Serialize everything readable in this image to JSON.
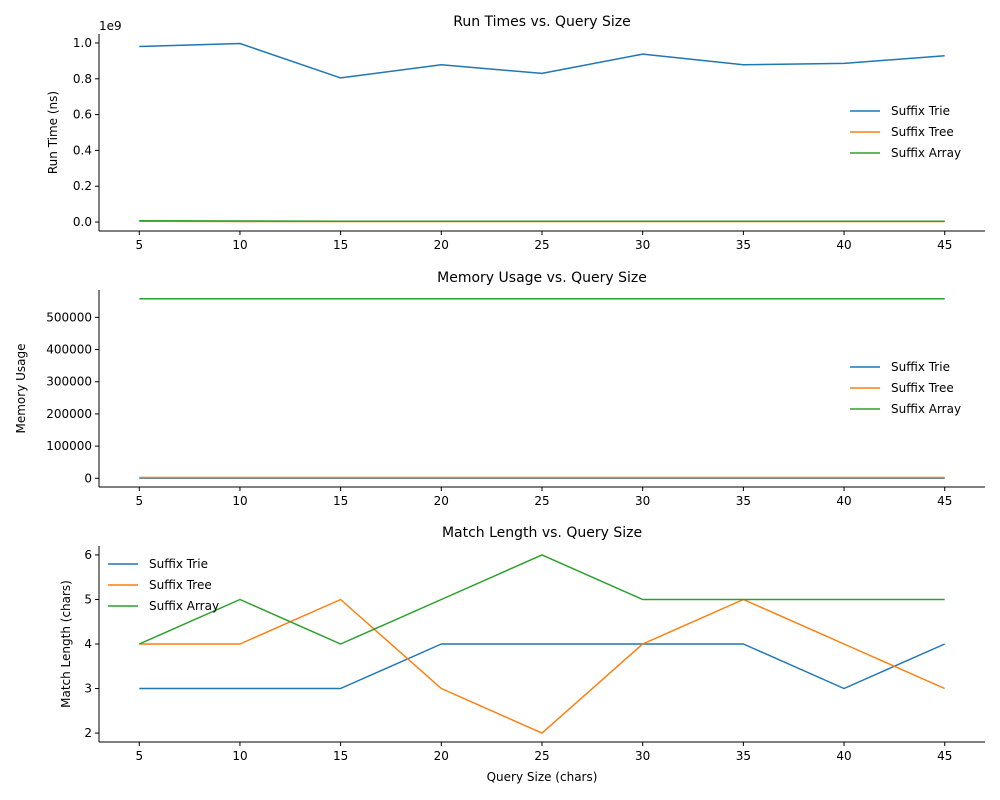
{
  "chart_data": [
    {
      "type": "line",
      "title": "Run Times vs. Query Size",
      "xlabel": "",
      "ylabel": "Run Time (ns)",
      "offset_label": "1e9",
      "x": [
        5,
        10,
        15,
        20,
        25,
        30,
        35,
        40,
        45
      ],
      "xticks": [
        "5",
        "10",
        "15",
        "20",
        "25",
        "30",
        "35",
        "40",
        "45"
      ],
      "xlim": [
        3,
        47
      ],
      "ylim": [
        -0.05,
        1.05
      ],
      "yticks": [
        0.0,
        0.2,
        0.4,
        0.6,
        0.8,
        1.0
      ],
      "ytick_labels": [
        "0.0",
        "0.2",
        "0.4",
        "0.6",
        "0.8",
        "1.0"
      ],
      "legend_position": "right",
      "grid": false,
      "series": [
        {
          "name": "Suffix Trie",
          "color": "#1f77b4",
          "values": [
            0.98,
            0.997,
            0.805,
            0.878,
            0.83,
            0.938,
            0.878,
            0.886,
            0.928
          ]
        },
        {
          "name": "Suffix Tree",
          "color": "#ff7f0e",
          "values": [
            0.004,
            0.003,
            0.003,
            0.003,
            0.003,
            0.003,
            0.003,
            0.003,
            0.003
          ]
        },
        {
          "name": "Suffix Array",
          "color": "#2ca02c",
          "values": [
            0.007,
            0.006,
            0.005,
            0.005,
            0.005,
            0.005,
            0.005,
            0.005,
            0.005
          ]
        }
      ]
    },
    {
      "type": "line",
      "title": "Memory Usage vs. Query Size",
      "xlabel": "",
      "ylabel": "Memory Usage",
      "x": [
        5,
        10,
        15,
        20,
        25,
        30,
        35,
        40,
        45
      ],
      "xticks": [
        "5",
        "10",
        "15",
        "20",
        "25",
        "30",
        "35",
        "40",
        "45"
      ],
      "xlim": [
        3,
        47
      ],
      "ylim": [
        -27000,
        585000
      ],
      "yticks": [
        0,
        100000,
        200000,
        300000,
        400000,
        500000
      ],
      "ytick_labels": [
        "0",
        "100000",
        "200000",
        "300000",
        "400000",
        "500000"
      ],
      "legend_position": "right",
      "grid": false,
      "series": [
        {
          "name": "Suffix Trie",
          "color": "#1f77b4",
          "values": [
            500,
            500,
            500,
            500,
            500,
            500,
            500,
            500,
            500
          ]
        },
        {
          "name": "Suffix Tree",
          "color": "#ff7f0e",
          "values": [
            2500,
            2500,
            2500,
            2500,
            2500,
            2500,
            2500,
            2500,
            2500
          ]
        },
        {
          "name": "Suffix Array",
          "color": "#2ca02c",
          "values": [
            558000,
            558000,
            558000,
            558000,
            558000,
            558000,
            558000,
            558000,
            558000
          ]
        }
      ]
    },
    {
      "type": "line",
      "title": "Match Length vs. Query Size",
      "xlabel": "Query Size (chars)",
      "ylabel": "Match Length (chars)",
      "x": [
        5,
        10,
        15,
        20,
        25,
        30,
        35,
        40,
        45
      ],
      "xticks": [
        "5",
        "10",
        "15",
        "20",
        "25",
        "30",
        "35",
        "40",
        "45"
      ],
      "xlim": [
        3,
        47
      ],
      "ylim": [
        1.8,
        6.2
      ],
      "yticks": [
        2,
        3,
        4,
        5,
        6
      ],
      "ytick_labels": [
        "2",
        "3",
        "4",
        "5",
        "6"
      ],
      "legend_position": "upper left",
      "grid": false,
      "series": [
        {
          "name": "Suffix Trie",
          "color": "#1f77b4",
          "values": [
            3,
            3,
            3,
            4,
            4,
            4,
            4,
            3,
            4
          ]
        },
        {
          "name": "Suffix Tree",
          "color": "#ff7f0e",
          "values": [
            4,
            4,
            5,
            3,
            2,
            4,
            5,
            4,
            3
          ]
        },
        {
          "name": "Suffix Array",
          "color": "#2ca02c",
          "values": [
            4,
            5,
            4,
            5,
            6,
            5,
            5,
            5,
            5
          ]
        }
      ]
    }
  ]
}
